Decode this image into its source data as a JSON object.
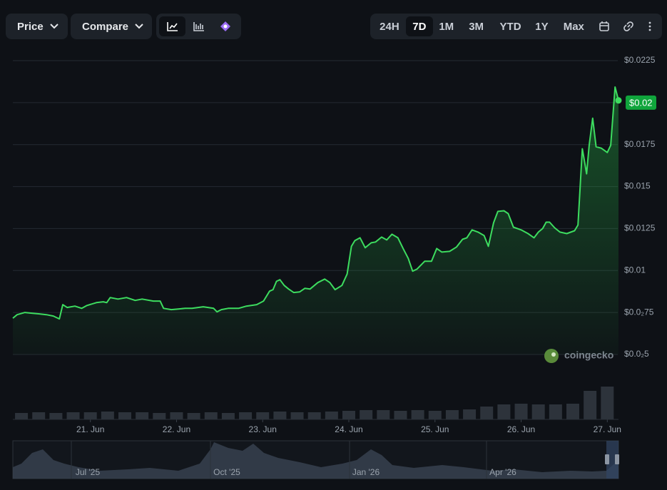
{
  "toolbar": {
    "price": "Price",
    "compare": "Compare",
    "ranges": [
      "24H",
      "7D",
      "1M",
      "3M",
      "YTD",
      "1Y",
      "Max"
    ],
    "active_range": 1
  },
  "watermark": "coingecko",
  "chart_data": {
    "type": "line",
    "color": "#3ddc5f",
    "grid": true,
    "x": [
      0.1,
      0.15,
      0.24,
      0.32,
      0.4,
      0.49,
      0.57,
      0.64,
      0.68,
      0.73,
      0.82,
      0.9,
      0.96,
      1.07,
      1.15,
      1.19,
      1.23,
      1.32,
      1.42,
      1.52,
      1.6,
      1.73,
      1.81,
      1.85,
      1.94,
      2.02,
      2.1,
      2.18,
      2.31,
      2.43,
      2.47,
      2.52,
      2.6,
      2.72,
      2.81,
      2.93,
      3.01,
      3.08,
      3.12,
      3.16,
      3.2,
      3.25,
      3.3,
      3.36,
      3.43,
      3.49,
      3.55,
      3.64,
      3.72,
      3.78,
      3.84,
      3.92,
      3.98,
      4.03,
      4.07,
      4.13,
      4.19,
      4.26,
      4.31,
      4.38,
      4.44,
      4.5,
      4.57,
      4.63,
      4.69,
      4.74,
      4.79,
      4.88,
      4.96,
      5.02,
      5.08,
      5.17,
      5.25,
      5.32,
      5.37,
      5.43,
      5.5,
      5.57,
      5.62,
      5.68,
      5.73,
      5.8,
      5.85,
      5.91,
      6.0,
      6.08,
      6.15,
      6.2,
      6.25,
      6.29,
      6.33,
      6.39,
      6.45,
      6.53,
      6.62,
      6.66,
      6.71,
      6.76,
      6.79,
      6.83,
      6.87,
      6.93,
      7.0,
      7.04,
      7.09,
      7.13
    ],
    "series": [
      {
        "name": "Price",
        "color": "#3ddc5f",
        "values": [
          0.00716,
          0.00737,
          0.0075,
          0.00746,
          0.00742,
          0.00737,
          0.00729,
          0.00712,
          0.00797,
          0.0078,
          0.00788,
          0.00775,
          0.00792,
          0.00809,
          0.00814,
          0.00809,
          0.00839,
          0.0083,
          0.00839,
          0.00822,
          0.0083,
          0.00818,
          0.00818,
          0.00775,
          0.00767,
          0.00771,
          0.00775,
          0.00775,
          0.00784,
          0.00775,
          0.00754,
          0.00767,
          0.00775,
          0.00775,
          0.00788,
          0.00797,
          0.00818,
          0.00877,
          0.00886,
          0.00936,
          0.00945,
          0.00911,
          0.0089,
          0.00869,
          0.00873,
          0.00894,
          0.0089,
          0.00928,
          0.00949,
          0.00928,
          0.00886,
          0.00911,
          0.00979,
          0.01144,
          0.01178,
          0.01195,
          0.01136,
          0.01165,
          0.0117,
          0.01199,
          0.01182,
          0.01216,
          0.01195,
          0.01131,
          0.01072,
          0.00996,
          0.01008,
          0.01055,
          0.01055,
          0.01131,
          0.0111,
          0.01114,
          0.0114,
          0.01186,
          0.01195,
          0.01242,
          0.01229,
          0.01208,
          0.01144,
          0.01284,
          0.01352,
          0.01356,
          0.01339,
          0.01258,
          0.01242,
          0.0122,
          0.01195,
          0.01229,
          0.0125,
          0.01288,
          0.01288,
          0.01254,
          0.01229,
          0.0122,
          0.01237,
          0.01271,
          0.01725,
          0.01576,
          0.01746,
          0.01907,
          0.01737,
          0.01729,
          0.01703,
          0.01746,
          0.02093,
          0.02013
        ]
      }
    ],
    "xlim": [
      0.1,
      7.13
    ],
    "xticks": [
      {
        "value": 1,
        "label": "21. Jun"
      },
      {
        "value": 2,
        "label": "22. Jun"
      },
      {
        "value": 3,
        "label": "23. Jun"
      },
      {
        "value": 4,
        "label": "24. Jun"
      },
      {
        "value": 5,
        "label": "25. Jun"
      },
      {
        "value": 6,
        "label": "26. Jun"
      },
      {
        "value": 7,
        "label": "27. Jun"
      }
    ],
    "ylim": [
      0.005,
      0.0225
    ],
    "yticks": [
      {
        "value": 0.005,
        "label": "$0.0₂5"
      },
      {
        "value": 0.0075,
        "label": "$0.0₂75"
      },
      {
        "value": 0.01,
        "label": "$0.01"
      },
      {
        "value": 0.0125,
        "label": "$0.0125"
      },
      {
        "value": 0.015,
        "label": "$0.015"
      },
      {
        "value": 0.0175,
        "label": "$0.0175"
      },
      {
        "value": 0.02,
        "label": "$0.02"
      },
      {
        "value": 0.0225,
        "label": "$0.0225"
      }
    ],
    "current_tick": 6,
    "volume": {
      "x": [
        0.2,
        0.4,
        0.6,
        0.8,
        1.0,
        1.2,
        1.4,
        1.6,
        1.8,
        2.0,
        2.2,
        2.4,
        2.6,
        2.8,
        3.0,
        3.2,
        3.4,
        3.6,
        3.8,
        4.0,
        4.2,
        4.4,
        4.6,
        4.8,
        5.0,
        5.2,
        5.4,
        5.6,
        5.8,
        6.0,
        6.2,
        6.4,
        6.6,
        6.8,
        7.0
      ],
      "values": [
        9,
        10,
        9,
        10,
        10,
        11,
        10,
        10,
        9,
        10,
        9,
        10,
        9,
        10,
        10,
        11,
        10,
        10,
        11,
        12,
        13,
        13,
        12,
        13,
        12,
        13,
        14,
        18,
        21,
        22,
        21,
        21,
        22,
        40,
        46
      ],
      "max": 50
    },
    "navigator": {
      "labels": [
        "Jul '25",
        "Oct '25",
        "Jan '26",
        "Apr '26"
      ]
    }
  }
}
